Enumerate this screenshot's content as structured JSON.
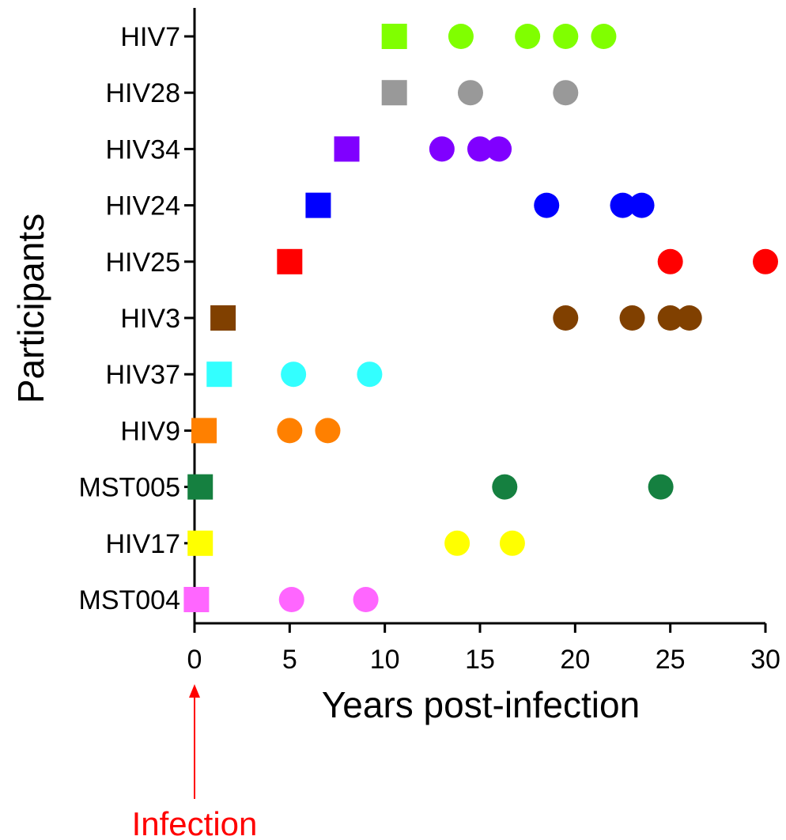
{
  "chart_data": {
    "type": "scatter",
    "xlabel": "Years post-infection",
    "ylabel": "Participants",
    "xlim": [
      0,
      30
    ],
    "x_ticks": [
      "0",
      "5",
      "10",
      "15",
      "20",
      "25",
      "30"
    ],
    "grid": false,
    "legend": "none",
    "categories": [
      "HIV7",
      "HIV28",
      "HIV34",
      "HIV24",
      "HIV25",
      "HIV3",
      "HIV37",
      "HIV9",
      "MST005",
      "HIV17",
      "MST004"
    ],
    "series": [
      {
        "category": "HIV7",
        "color": "#80ff00",
        "square": 10.5,
        "circles": [
          14,
          17.5,
          19.5,
          21.5
        ]
      },
      {
        "category": "HIV28",
        "color": "#999999",
        "square": 10.5,
        "circles": [
          14.5,
          19.5
        ]
      },
      {
        "category": "HIV34",
        "color": "#8000ff",
        "square": 8,
        "circles": [
          13,
          15,
          16
        ]
      },
      {
        "category": "HIV24",
        "color": "#0000ff",
        "square": 6.5,
        "circles": [
          18.5,
          22.5,
          23.5
        ]
      },
      {
        "category": "HIV25",
        "color": "#ff0000",
        "square": 5,
        "circles": [
          25,
          30
        ]
      },
      {
        "category": "HIV3",
        "color": "#804000",
        "square": 1.5,
        "circles": [
          19.5,
          23,
          25,
          26
        ]
      },
      {
        "category": "HIV37",
        "color": "#33ffff",
        "square": 1.3,
        "circles": [
          5.2,
          9.2
        ]
      },
      {
        "category": "HIV9",
        "color": "#ff8000",
        "square": 0.5,
        "circles": [
          5,
          7
        ]
      },
      {
        "category": "MST005",
        "color": "#158040",
        "square": 0.3,
        "circles": [
          16.3,
          24.5
        ]
      },
      {
        "category": "HIV17",
        "color": "#ffff00",
        "square": 0.3,
        "circles": [
          13.8,
          16.7
        ]
      },
      {
        "category": "MST004",
        "color": "#ff66ff",
        "square": 0.1,
        "circles": [
          5.1,
          9
        ]
      }
    ],
    "annotation": {
      "text": "Infection",
      "x": 0,
      "color": "#ff0000"
    }
  }
}
